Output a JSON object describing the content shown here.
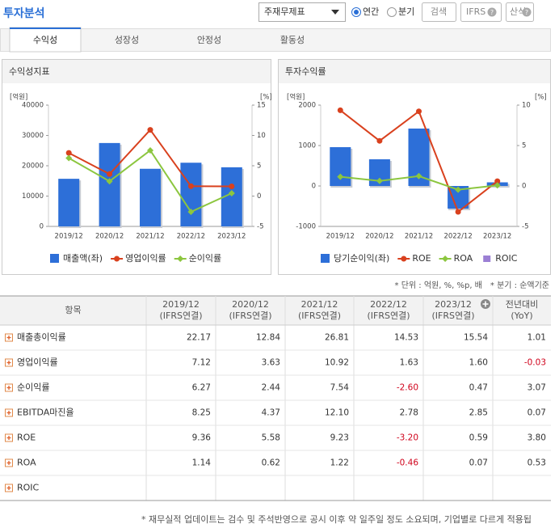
{
  "header": {
    "title": "투자분석",
    "select": "주재무제표",
    "radios": [
      "연간",
      "분기"
    ],
    "buttons": [
      "검색",
      "IFRS",
      "산식"
    ]
  },
  "tabs": [
    "수익성",
    "성장성",
    "안정성",
    "활동성"
  ],
  "chart_data": [
    {
      "type": "combo",
      "title": "수익성지표",
      "y_label": "[억원]",
      "y2_label": "[%]",
      "categories": [
        "2019/12",
        "2020/12",
        "2021/12",
        "2022/12",
        "2023/12"
      ],
      "ylim": [
        0,
        40000
      ],
      "yticks": [
        0,
        10000,
        20000,
        30000,
        40000
      ],
      "y2lim": [
        -5,
        15
      ],
      "y2ticks": [
        -5,
        0,
        5,
        10,
        15
      ],
      "series": [
        {
          "name": "매출액(좌)",
          "type": "bar",
          "axis": "y",
          "color": "#2d6fd8",
          "values": [
            15700,
            27500,
            19000,
            21000,
            19500
          ]
        },
        {
          "name": "영업이익률",
          "type": "line",
          "axis": "y2",
          "marker": "circle",
          "color": "#d9411e",
          "values": [
            7.12,
            3.63,
            10.92,
            1.63,
            1.6
          ]
        },
        {
          "name": "순이익률",
          "type": "line",
          "axis": "y2",
          "marker": "diamond",
          "color": "#8cc63f",
          "values": [
            6.27,
            2.44,
            7.54,
            -2.6,
            0.47
          ]
        }
      ]
    },
    {
      "type": "combo",
      "title": "투자수익률",
      "y_label": "[억원]",
      "y2_label": "[%]",
      "categories": [
        "2019/12",
        "2020/12",
        "2021/12",
        "2022/12",
        "2023/12"
      ],
      "ylim": [
        -1000,
        2000
      ],
      "yticks": [
        -1000,
        0,
        1000,
        2000
      ],
      "y2lim": [
        -5,
        10
      ],
      "y2ticks": [
        -5,
        0,
        5,
        10
      ],
      "series": [
        {
          "name": "당기순이익(좌)",
          "type": "bar",
          "axis": "y",
          "color": "#2d6fd8",
          "values": [
            960,
            660,
            1420,
            -560,
            90
          ]
        },
        {
          "name": "ROE",
          "type": "line",
          "axis": "y2",
          "marker": "circle",
          "color": "#d9411e",
          "values": [
            9.36,
            5.58,
            9.23,
            -3.2,
            0.59
          ]
        },
        {
          "name": "ROA",
          "type": "line",
          "axis": "y2",
          "marker": "diamond",
          "color": "#8cc63f",
          "values": [
            1.14,
            0.62,
            1.22,
            -0.46,
            0.07
          ]
        },
        {
          "name": "ROIC",
          "type": "line",
          "axis": "y2",
          "marker": "square",
          "color": "#9b7fd4",
          "values": [
            null,
            null,
            null,
            null,
            null
          ]
        }
      ]
    }
  ],
  "notes": [
    "* 단위 : 억원, %, %p, 배",
    "* 분기 : 순액기준"
  ],
  "table": {
    "columns": [
      [
        "항목"
      ],
      [
        "2019/12",
        "(IFRS연결)"
      ],
      [
        "2020/12",
        "(IFRS연결)"
      ],
      [
        "2021/12",
        "(IFRS연결)"
      ],
      [
        "2022/12",
        "(IFRS연결)"
      ],
      [
        "2023/12",
        "(IFRS연결)"
      ],
      [
        "전년대비",
        "(YoY)"
      ]
    ],
    "rows": [
      {
        "label": "매출총이익률",
        "values": [
          "22.17",
          "12.84",
          "26.81",
          "14.53",
          "15.54",
          "1.01"
        ]
      },
      {
        "label": "영업이익률",
        "values": [
          "7.12",
          "3.63",
          "10.92",
          "1.63",
          "1.60",
          "-0.03"
        ]
      },
      {
        "label": "순이익률",
        "values": [
          "6.27",
          "2.44",
          "7.54",
          "-2.60",
          "0.47",
          "3.07"
        ]
      },
      {
        "label": "EBITDA마진율",
        "values": [
          "8.25",
          "4.37",
          "12.10",
          "2.78",
          "2.85",
          "0.07"
        ]
      },
      {
        "label": "ROE",
        "values": [
          "9.36",
          "5.58",
          "9.23",
          "-3.20",
          "0.59",
          "3.80"
        ]
      },
      {
        "label": "ROA",
        "values": [
          "1.14",
          "0.62",
          "1.22",
          "-0.46",
          "0.07",
          "0.53"
        ]
      },
      {
        "label": "ROIC",
        "values": [
          null,
          null,
          null,
          null,
          null,
          null
        ]
      }
    ]
  },
  "footer": "* 재무실적 업데이트는 검수 및 주석반영으로 공시 이후 약 일주일 정도 소요되며, 기업별로 다르게 적용됩"
}
